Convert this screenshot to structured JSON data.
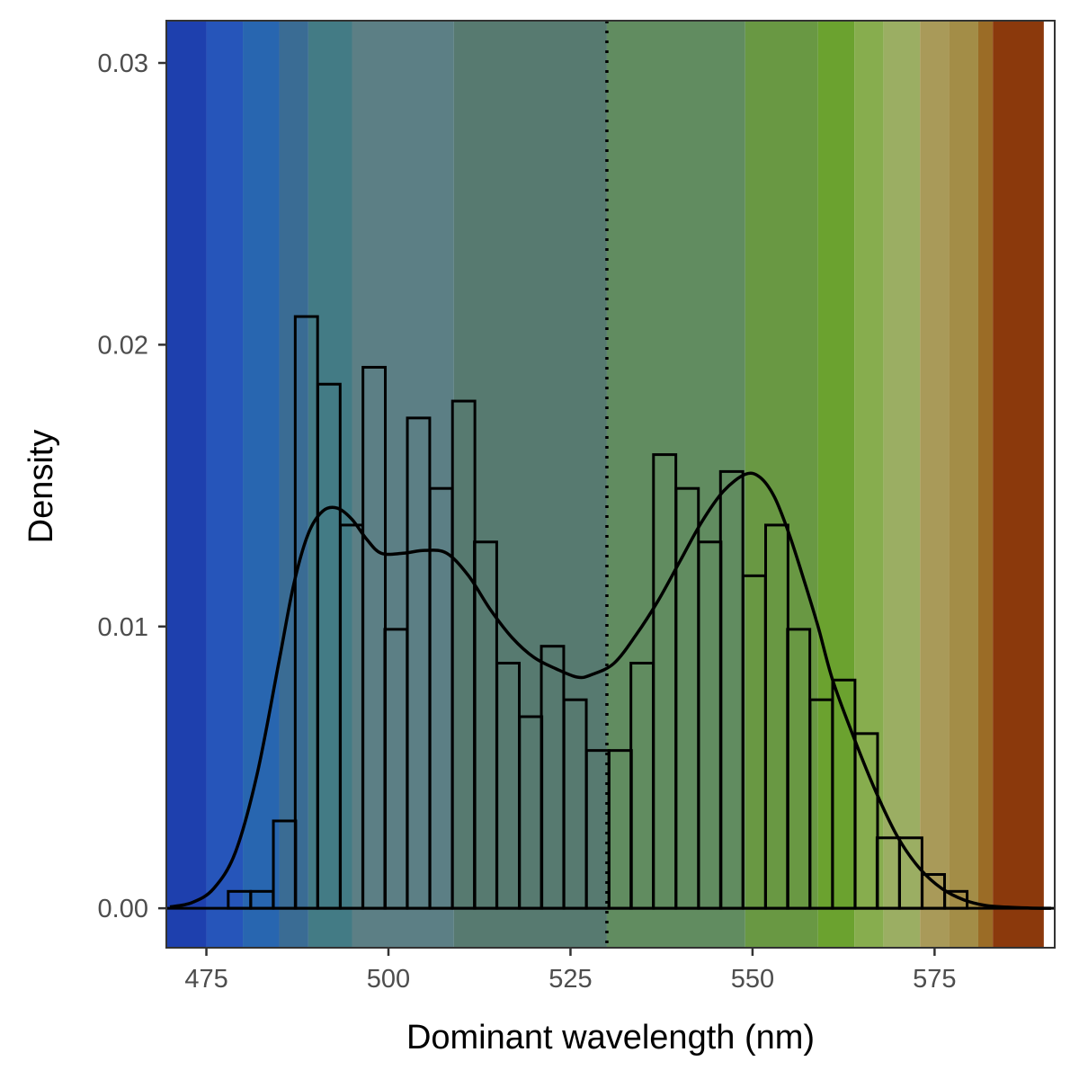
{
  "chart_data": {
    "type": "bar",
    "title": "",
    "xlabel": "Dominant wavelength (nm)",
    "ylabel": "Density",
    "xlim": [
      469.5,
      591.5
    ],
    "ylim": [
      -0.0014,
      0.0315
    ],
    "x_ticks": [
      475,
      500,
      525,
      550,
      575
    ],
    "x_tick_labels": [
      "475",
      "500",
      "525",
      "550",
      "575"
    ],
    "y_ticks": [
      0,
      0.01,
      0.02,
      0.03
    ],
    "y_tick_labels": [
      "0.00",
      "0.01",
      "0.02",
      "0.03"
    ],
    "grid": false,
    "bin_width": 3.07,
    "histogram": {
      "bin_left": [
        478.0,
        481.1,
        484.2,
        487.2,
        490.3,
        493.4,
        496.5,
        499.5,
        502.6,
        505.7,
        508.8,
        511.8,
        514.9,
        518.0,
        521.0,
        524.1,
        527.2,
        530.3,
        533.3,
        536.4,
        539.5,
        542.6,
        545.6,
        548.7,
        551.8,
        554.8,
        557.9,
        561.0,
        564.1,
        567.1,
        570.2,
        573.3,
        576.4,
        579.4
      ],
      "density": [
        0.0006,
        0.0006,
        0.0031,
        0.021,
        0.0186,
        0.0136,
        0.0192,
        0.0099,
        0.0174,
        0.0149,
        0.018,
        0.013,
        0.0087,
        0.0068,
        0.0093,
        0.0074,
        0.0056,
        0.0056,
        0.0087,
        0.0161,
        0.0149,
        0.013,
        0.0155,
        0.0118,
        0.0136,
        0.0099,
        0.0074,
        0.0081,
        0.0062,
        0.0025,
        0.0025,
        0.0012,
        0.0006,
        0.0
      ]
    },
    "density_curve": {
      "x": [
        470,
        473,
        476,
        479,
        482,
        485,
        487,
        489,
        491,
        493,
        495,
        497,
        499,
        502,
        505,
        508,
        511,
        514,
        517,
        520,
        523,
        526,
        528,
        531,
        534,
        537,
        540,
        543,
        546,
        549,
        551,
        553,
        555,
        557,
        559,
        561,
        564,
        567,
        570,
        573,
        576,
        579,
        582,
        585,
        588,
        591
      ],
      "y": [
        5e-05,
        0.0002,
        0.0007,
        0.002,
        0.0048,
        0.0088,
        0.0115,
        0.0133,
        0.0141,
        0.0142,
        0.0138,
        0.0131,
        0.0126,
        0.0126,
        0.0127,
        0.0126,
        0.0118,
        0.0106,
        0.0096,
        0.0089,
        0.0085,
        0.0082,
        0.0083,
        0.0087,
        0.0097,
        0.0109,
        0.0123,
        0.0137,
        0.0148,
        0.0154,
        0.0153,
        0.0146,
        0.0133,
        0.0117,
        0.01,
        0.0081,
        0.006,
        0.0041,
        0.0025,
        0.0014,
        0.0007,
        0.0003,
        0.0001,
        4e-05,
        1e-05,
        0.0
      ]
    },
    "reference_line": {
      "x": 530,
      "style": "dotted"
    },
    "background_bands": [
      {
        "from": 469.5,
        "to": 475,
        "color": "#1e40ae"
      },
      {
        "from": 475,
        "to": 480,
        "color": "#2655ba"
      },
      {
        "from": 480,
        "to": 485,
        "color": "#2866b0"
      },
      {
        "from": 485,
        "to": 489,
        "color": "#3a6c94"
      },
      {
        "from": 489,
        "to": 495,
        "color": "#437b85"
      },
      {
        "from": 495,
        "to": 509,
        "color": "#5c7f85"
      },
      {
        "from": 509,
        "to": 530,
        "color": "#577a70"
      },
      {
        "from": 530,
        "to": 549,
        "color": "#618c60"
      },
      {
        "from": 549,
        "to": 559,
        "color": "#699843"
      },
      {
        "from": 559,
        "to": 564,
        "color": "#6ba22f"
      },
      {
        "from": 564,
        "to": 568,
        "color": "#87ad4e"
      },
      {
        "from": 568,
        "to": 573,
        "color": "#9bae63"
      },
      {
        "from": 573,
        "to": 577,
        "color": "#a99a59"
      },
      {
        "from": 577,
        "to": 581,
        "color": "#a38d47"
      },
      {
        "from": 581,
        "to": 583,
        "color": "#9b6c26"
      },
      {
        "from": 583,
        "to": 590,
        "color": "#8b390c"
      }
    ],
    "colors": {
      "bar_outline": "#000000",
      "curve": "#000000",
      "panel_border": "#333333",
      "tick_text": "#4d4d4d"
    }
  }
}
